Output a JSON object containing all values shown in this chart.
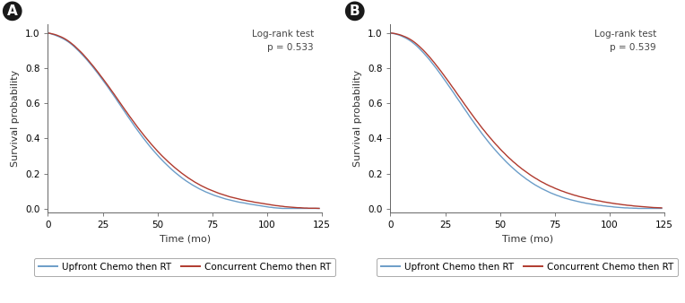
{
  "panel_A": {
    "label": "A",
    "logrank_text": "Log-rank test\np = 0.533",
    "blue_curve": {
      "x": [
        0,
        1,
        2,
        3,
        4,
        5,
        6,
        7,
        8,
        9,
        10,
        11,
        12,
        13,
        14,
        15,
        16,
        17,
        18,
        19,
        20,
        21,
        22,
        23,
        24,
        25,
        26,
        27,
        28,
        29,
        30,
        31,
        32,
        33,
        34,
        35,
        36,
        37,
        38,
        39,
        40,
        41,
        42,
        43,
        44,
        45,
        46,
        47,
        48,
        49,
        50,
        51,
        52,
        53,
        54,
        55,
        56,
        57,
        58,
        59,
        60,
        61,
        62,
        63,
        64,
        65,
        66,
        67,
        68,
        69,
        70,
        71,
        72,
        73,
        74,
        75,
        76,
        77,
        78,
        79,
        80,
        81,
        82,
        83,
        84,
        85,
        86,
        87,
        88,
        89,
        90,
        91,
        92,
        93,
        94,
        95,
        96,
        97,
        98,
        99,
        100,
        101,
        102,
        103,
        104,
        105,
        106,
        107,
        108,
        109,
        110,
        111,
        112,
        113,
        114,
        115,
        116,
        117,
        118,
        119,
        120,
        122,
        124
      ],
      "y": [
        1.0,
        0.997,
        0.993,
        0.989,
        0.984,
        0.979,
        0.973,
        0.967,
        0.96,
        0.952,
        0.943,
        0.933,
        0.922,
        0.91,
        0.898,
        0.885,
        0.872,
        0.858,
        0.844,
        0.829,
        0.814,
        0.798,
        0.782,
        0.766,
        0.749,
        0.732,
        0.715,
        0.698,
        0.68,
        0.662,
        0.644,
        0.626,
        0.607,
        0.589,
        0.57,
        0.552,
        0.533,
        0.515,
        0.497,
        0.479,
        0.461,
        0.444,
        0.427,
        0.41,
        0.394,
        0.378,
        0.362,
        0.347,
        0.332,
        0.318,
        0.304,
        0.29,
        0.277,
        0.264,
        0.252,
        0.24,
        0.228,
        0.217,
        0.206,
        0.196,
        0.186,
        0.176,
        0.167,
        0.158,
        0.15,
        0.142,
        0.134,
        0.127,
        0.12,
        0.113,
        0.107,
        0.101,
        0.095,
        0.09,
        0.085,
        0.08,
        0.075,
        0.071,
        0.067,
        0.063,
        0.059,
        0.055,
        0.052,
        0.049,
        0.046,
        0.043,
        0.04,
        0.037,
        0.035,
        0.033,
        0.031,
        0.028,
        0.026,
        0.024,
        0.022,
        0.02,
        0.018,
        0.016,
        0.014,
        0.012,
        0.01,
        0.008,
        0.007,
        0.005,
        0.004,
        0.003,
        0.002,
        0.001,
        0.001,
        0.001,
        0.001,
        0.001,
        0.001,
        0.001,
        0.001,
        0.001,
        0.001,
        0.001,
        0.001,
        0.001,
        0.001,
        0.001,
        0.001
      ]
    },
    "red_curve": {
      "x": [
        0,
        1,
        2,
        3,
        4,
        5,
        6,
        7,
        8,
        9,
        10,
        11,
        12,
        13,
        14,
        15,
        16,
        17,
        18,
        19,
        20,
        21,
        22,
        23,
        24,
        25,
        26,
        27,
        28,
        29,
        30,
        31,
        32,
        33,
        34,
        35,
        36,
        37,
        38,
        39,
        40,
        41,
        42,
        43,
        44,
        45,
        46,
        47,
        48,
        49,
        50,
        51,
        52,
        53,
        54,
        55,
        56,
        57,
        58,
        59,
        60,
        61,
        62,
        63,
        64,
        65,
        66,
        67,
        68,
        69,
        70,
        71,
        72,
        73,
        74,
        75,
        76,
        77,
        78,
        79,
        80,
        81,
        82,
        83,
        84,
        85,
        86,
        87,
        88,
        89,
        90,
        91,
        92,
        93,
        94,
        95,
        96,
        97,
        98,
        99,
        100,
        101,
        102,
        103,
        104,
        105,
        106,
        107,
        108,
        109,
        110,
        111,
        112,
        113,
        114,
        115,
        116,
        117,
        118,
        119,
        120,
        122,
        124
      ],
      "y": [
        1.0,
        0.998,
        0.995,
        0.992,
        0.988,
        0.983,
        0.978,
        0.972,
        0.965,
        0.957,
        0.948,
        0.938,
        0.928,
        0.916,
        0.904,
        0.892,
        0.879,
        0.865,
        0.851,
        0.836,
        0.821,
        0.806,
        0.79,
        0.774,
        0.757,
        0.741,
        0.724,
        0.707,
        0.69,
        0.672,
        0.655,
        0.637,
        0.619,
        0.601,
        0.583,
        0.565,
        0.548,
        0.53,
        0.513,
        0.496,
        0.479,
        0.462,
        0.446,
        0.43,
        0.414,
        0.399,
        0.384,
        0.369,
        0.355,
        0.341,
        0.327,
        0.314,
        0.301,
        0.289,
        0.277,
        0.265,
        0.254,
        0.243,
        0.232,
        0.222,
        0.212,
        0.202,
        0.193,
        0.184,
        0.175,
        0.167,
        0.159,
        0.151,
        0.144,
        0.137,
        0.13,
        0.124,
        0.118,
        0.112,
        0.107,
        0.102,
        0.097,
        0.092,
        0.087,
        0.083,
        0.079,
        0.075,
        0.071,
        0.067,
        0.064,
        0.061,
        0.058,
        0.055,
        0.052,
        0.049,
        0.047,
        0.044,
        0.042,
        0.04,
        0.037,
        0.035,
        0.033,
        0.031,
        0.029,
        0.027,
        0.025,
        0.023,
        0.021,
        0.019,
        0.017,
        0.016,
        0.014,
        0.013,
        0.011,
        0.01,
        0.009,
        0.008,
        0.007,
        0.006,
        0.005,
        0.005,
        0.004,
        0.003,
        0.003,
        0.002,
        0.002,
        0.002,
        0.001
      ]
    }
  },
  "panel_B": {
    "label": "B",
    "logrank_text": "Log-rank test\np = 0.539",
    "blue_curve": {
      "x": [
        0,
        1,
        2,
        3,
        4,
        5,
        6,
        7,
        8,
        9,
        10,
        11,
        12,
        13,
        14,
        15,
        16,
        17,
        18,
        19,
        20,
        21,
        22,
        23,
        24,
        25,
        26,
        27,
        28,
        29,
        30,
        31,
        32,
        33,
        34,
        35,
        36,
        37,
        38,
        39,
        40,
        41,
        42,
        43,
        44,
        45,
        46,
        47,
        48,
        49,
        50,
        51,
        52,
        53,
        54,
        55,
        56,
        57,
        58,
        59,
        60,
        61,
        62,
        63,
        64,
        65,
        66,
        67,
        68,
        69,
        70,
        71,
        72,
        73,
        74,
        75,
        76,
        77,
        78,
        79,
        80,
        81,
        82,
        83,
        84,
        85,
        86,
        87,
        88,
        89,
        90,
        91,
        92,
        93,
        94,
        95,
        96,
        97,
        98,
        99,
        100,
        101,
        102,
        103,
        104,
        105,
        106,
        107,
        108,
        109,
        110,
        111,
        112,
        113,
        114,
        115,
        116,
        117,
        118,
        119,
        120,
        122,
        124
      ],
      "y": [
        1.0,
        0.998,
        0.995,
        0.992,
        0.988,
        0.983,
        0.977,
        0.971,
        0.964,
        0.956,
        0.947,
        0.937,
        0.926,
        0.914,
        0.901,
        0.888,
        0.874,
        0.86,
        0.845,
        0.829,
        0.813,
        0.797,
        0.78,
        0.763,
        0.745,
        0.728,
        0.71,
        0.692,
        0.674,
        0.656,
        0.637,
        0.619,
        0.601,
        0.582,
        0.564,
        0.546,
        0.527,
        0.509,
        0.492,
        0.474,
        0.457,
        0.44,
        0.423,
        0.407,
        0.391,
        0.375,
        0.36,
        0.345,
        0.331,
        0.317,
        0.303,
        0.29,
        0.277,
        0.264,
        0.252,
        0.24,
        0.229,
        0.218,
        0.207,
        0.197,
        0.187,
        0.178,
        0.168,
        0.16,
        0.151,
        0.143,
        0.135,
        0.128,
        0.121,
        0.114,
        0.108,
        0.102,
        0.096,
        0.09,
        0.085,
        0.08,
        0.075,
        0.071,
        0.066,
        0.062,
        0.058,
        0.055,
        0.051,
        0.048,
        0.045,
        0.042,
        0.039,
        0.036,
        0.034,
        0.031,
        0.029,
        0.027,
        0.025,
        0.023,
        0.021,
        0.019,
        0.018,
        0.016,
        0.015,
        0.013,
        0.012,
        0.011,
        0.009,
        0.008,
        0.007,
        0.006,
        0.005,
        0.004,
        0.004,
        0.003,
        0.003,
        0.002,
        0.002,
        0.001,
        0.001,
        0.001,
        0.001,
        0.001,
        0.001,
        0.001,
        0.001,
        0.001,
        0.001
      ]
    },
    "red_curve": {
      "x": [
        0,
        1,
        2,
        3,
        4,
        5,
        6,
        7,
        8,
        9,
        10,
        11,
        12,
        13,
        14,
        15,
        16,
        17,
        18,
        19,
        20,
        21,
        22,
        23,
        24,
        25,
        26,
        27,
        28,
        29,
        30,
        31,
        32,
        33,
        34,
        35,
        36,
        37,
        38,
        39,
        40,
        41,
        42,
        43,
        44,
        45,
        46,
        47,
        48,
        49,
        50,
        51,
        52,
        53,
        54,
        55,
        56,
        57,
        58,
        59,
        60,
        61,
        62,
        63,
        64,
        65,
        66,
        67,
        68,
        69,
        70,
        71,
        72,
        73,
        74,
        75,
        76,
        77,
        78,
        79,
        80,
        81,
        82,
        83,
        84,
        85,
        86,
        87,
        88,
        89,
        90,
        91,
        92,
        93,
        94,
        95,
        96,
        97,
        98,
        99,
        100,
        101,
        102,
        103,
        104,
        105,
        106,
        107,
        108,
        109,
        110,
        111,
        112,
        113,
        114,
        115,
        116,
        117,
        118,
        119,
        120,
        122,
        124
      ],
      "y": [
        1.0,
        0.999,
        0.997,
        0.994,
        0.991,
        0.987,
        0.982,
        0.977,
        0.971,
        0.964,
        0.956,
        0.947,
        0.937,
        0.926,
        0.914,
        0.902,
        0.889,
        0.875,
        0.861,
        0.846,
        0.831,
        0.815,
        0.799,
        0.783,
        0.766,
        0.749,
        0.732,
        0.715,
        0.697,
        0.68,
        0.662,
        0.644,
        0.627,
        0.609,
        0.591,
        0.574,
        0.556,
        0.539,
        0.522,
        0.505,
        0.489,
        0.472,
        0.456,
        0.441,
        0.425,
        0.41,
        0.396,
        0.381,
        0.367,
        0.354,
        0.34,
        0.327,
        0.315,
        0.302,
        0.29,
        0.279,
        0.267,
        0.257,
        0.246,
        0.236,
        0.226,
        0.217,
        0.208,
        0.199,
        0.19,
        0.182,
        0.174,
        0.167,
        0.159,
        0.152,
        0.146,
        0.139,
        0.133,
        0.127,
        0.122,
        0.116,
        0.111,
        0.106,
        0.101,
        0.097,
        0.092,
        0.088,
        0.084,
        0.08,
        0.076,
        0.073,
        0.069,
        0.066,
        0.063,
        0.06,
        0.057,
        0.054,
        0.051,
        0.049,
        0.046,
        0.044,
        0.042,
        0.039,
        0.037,
        0.035,
        0.033,
        0.031,
        0.029,
        0.027,
        0.026,
        0.024,
        0.022,
        0.021,
        0.019,
        0.018,
        0.017,
        0.015,
        0.014,
        0.013,
        0.012,
        0.011,
        0.01,
        0.009,
        0.008,
        0.007,
        0.006,
        0.005,
        0.004
      ]
    }
  },
  "blue_color": "#6b9dc8",
  "red_color": "#b03a2e",
  "ylabel": "Survival probability",
  "xlabel": "Time (mo)",
  "xlim": [
    0,
    125
  ],
  "ylim": [
    -0.02,
    1.05
  ],
  "xticks": [
    0,
    25,
    50,
    75,
    100,
    125
  ],
  "yticks": [
    0.0,
    0.2,
    0.4,
    0.6,
    0.8,
    1.0
  ],
  "legend_blue": "Upfront Chemo then RT",
  "legend_red": "Concurrent Chemo then RT",
  "panel_label_fontsize": 11,
  "axis_label_fontsize": 8,
  "tick_fontsize": 7.5,
  "annotation_fontsize": 7.5,
  "legend_fontsize": 7.5,
  "linewidth": 1.0,
  "background_color": "#ffffff"
}
